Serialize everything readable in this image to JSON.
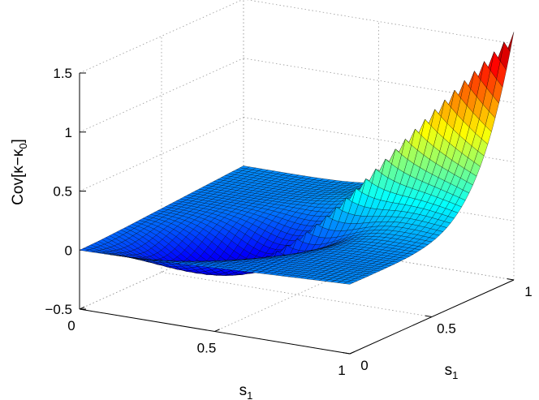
{
  "chart_data": {
    "type": "surface",
    "title": "",
    "xlabel": "s",
    "xlabel_sub": "1",
    "ylabel": "s",
    "ylabel_sub": "1",
    "zlabel": "Cov[κ−κ",
    "zlabel_sub": "0",
    "zlabel_tail": "]",
    "xlim": [
      0,
      1
    ],
    "ylim": [
      0,
      1
    ],
    "zlim": [
      -0.5,
      1.5
    ],
    "xticks": [
      0,
      0.5,
      1
    ],
    "yticks": [
      0,
      0.5,
      1
    ],
    "zticks": [
      -0.5,
      0,
      0.5,
      1,
      1.5
    ],
    "xtick_labels": [
      "0",
      "0.5",
      "1"
    ],
    "ytick_labels": [
      "0",
      "0.5",
      "1"
    ],
    "ztick_labels": [
      "−0.5",
      "0",
      "0.5",
      "1",
      "1.5"
    ],
    "grid": true,
    "colormap": "jet",
    "surface_samples": [
      {
        "s1": 0,
        "s1p": 0,
        "value": 0.0
      },
      {
        "s1": 1,
        "s1p": 1,
        "value": 1.6
      },
      {
        "s1": 0,
        "s1p": 1,
        "value": 0.0
      },
      {
        "s1": 1,
        "s1p": 0,
        "value": 0.0
      },
      {
        "s1": 0.5,
        "s1p": 0.5,
        "value": 0.35
      },
      {
        "s1": 0.5,
        "s1p": 1,
        "value": 0.07
      },
      {
        "s1": 1,
        "s1p": 0.5,
        "value": 0.07
      }
    ]
  }
}
